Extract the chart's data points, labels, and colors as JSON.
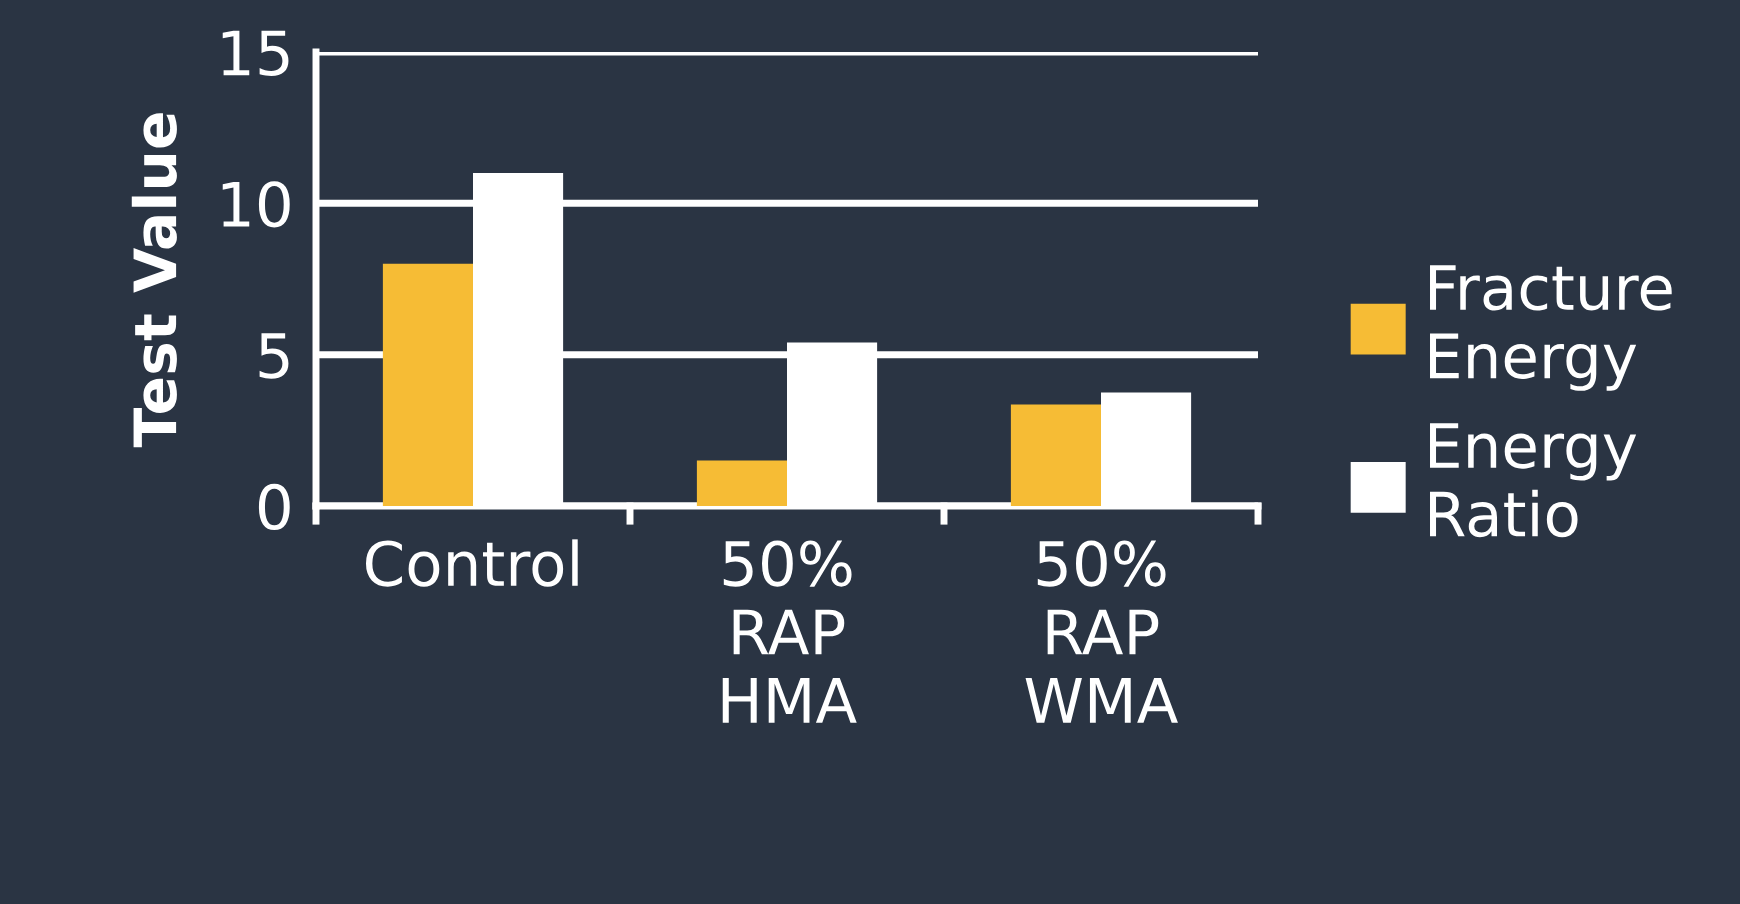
{
  "chart_data": {
    "type": "bar",
    "ylabel": "Test Value",
    "categories": [
      "Control",
      "50% RAP HMA",
      "50% RAP WMA"
    ],
    "series": [
      {
        "name": "Fracture Energy",
        "color": "#f6bc35",
        "values": [
          8.0,
          1.5,
          3.35
        ]
      },
      {
        "name": "Energy Ratio",
        "color": "#ffffff",
        "values": [
          11.0,
          5.4,
          3.75
        ]
      }
    ],
    "ylim": [
      0,
      15
    ],
    "yticks": [
      0,
      5,
      10,
      15
    ],
    "grid": "y",
    "legend": "right"
  }
}
